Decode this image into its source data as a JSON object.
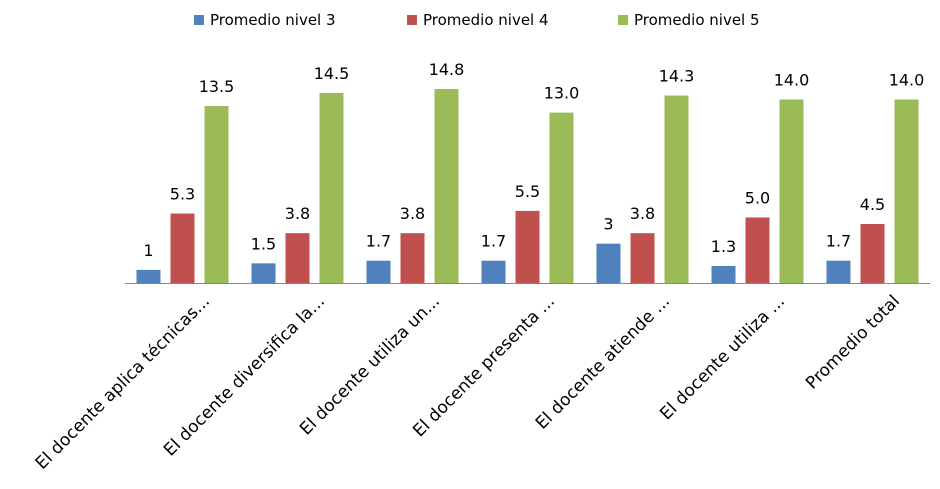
{
  "chart_data": {
    "type": "bar",
    "categories": [
      "El docente  aplica técnicas...",
      "El docente diversifica la...",
      "El docente utiliza un...",
      "El docente presenta ...",
      "El docente atiende ...",
      "El docente utiliza ...",
      "Promedio total"
    ],
    "series": [
      {
        "name": "Promedio nivel 3",
        "color": "#4F81BD",
        "values": [
          1,
          1.5,
          1.7,
          1.7,
          3,
          1.3,
          1.7
        ],
        "labels": [
          "1",
          "1.5",
          "1.7",
          "1.7",
          "3",
          "1.3",
          "1.7"
        ]
      },
      {
        "name": "Promedio nivel 4",
        "color": "#C0504D",
        "values": [
          5.3,
          3.8,
          3.8,
          5.5,
          3.8,
          5.0,
          4.5
        ],
        "labels": [
          "5.3",
          "3.8",
          "3.8",
          "5.5",
          "3.8",
          "5.0",
          "4.5"
        ]
      },
      {
        "name": "Promedio nivel 5",
        "color": "#9BBB59",
        "values": [
          13.5,
          14.5,
          14.8,
          13.0,
          14.3,
          14.0,
          14.0
        ],
        "labels": [
          "13.5",
          "14.5",
          "14.8",
          "13.0",
          "14.3",
          "14.0",
          "14.0"
        ]
      }
    ],
    "title": "",
    "xlabel": "",
    "ylabel": "",
    "ylim": [
      0,
      17.3
    ],
    "grid": false,
    "legend_position": "top"
  }
}
